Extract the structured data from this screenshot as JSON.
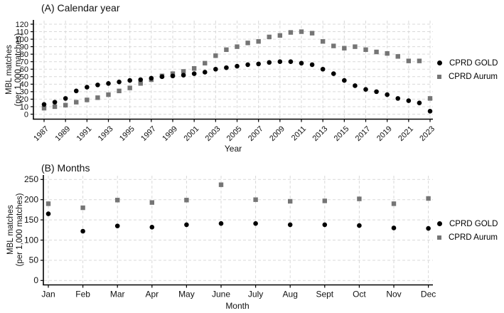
{
  "page": {
    "background": "#ffffff"
  },
  "legend": {
    "items": [
      {
        "label": "CPRD GOLD",
        "marker": "circle",
        "color": "#000000"
      },
      {
        "label": "CPRD Aurum",
        "marker": "square",
        "color": "#757575"
      }
    ]
  },
  "chart_data": [
    {
      "id": "A",
      "type": "scatter",
      "title": "(A) Calendar year",
      "xlabel": "Year",
      "ylabel": "MBL matches",
      "ylabel2": "(per 1,000 matches)",
      "ylim": [
        0,
        120
      ],
      "yticks": [
        0,
        10,
        20,
        30,
        40,
        50,
        60,
        70,
        80,
        90,
        100,
        110,
        120
      ],
      "grid": true,
      "legend_position": "right",
      "x": [
        1987,
        1988,
        1989,
        1990,
        1991,
        1992,
        1993,
        1994,
        1995,
        1996,
        1997,
        1998,
        1999,
        2000,
        2001,
        2002,
        2003,
        2004,
        2005,
        2006,
        2007,
        2008,
        2009,
        2010,
        2011,
        2012,
        2013,
        2014,
        2015,
        2016,
        2017,
        2018,
        2019,
        2020,
        2021,
        2022,
        2023
      ],
      "xticks": [
        1987,
        1989,
        1991,
        1993,
        1995,
        1997,
        1999,
        2001,
        2003,
        2005,
        2007,
        2009,
        2011,
        2013,
        2015,
        2017,
        2019,
        2021,
        2023
      ],
      "series": [
        {
          "name": "CPRD GOLD",
          "marker": "circle",
          "color": "#000000",
          "values": [
            13,
            16,
            21,
            31,
            36,
            39,
            41,
            43,
            45,
            46,
            48,
            50,
            51,
            52,
            54,
            56,
            60,
            62,
            64,
            66,
            67,
            69,
            70,
            70,
            68,
            66,
            60,
            54,
            45,
            38,
            33,
            30,
            26,
            21,
            18,
            15,
            4
          ]
        },
        {
          "name": "CPRD Aurum",
          "marker": "square",
          "color": "#757575",
          "values": [
            8,
            10,
            12,
            16,
            19,
            22,
            26,
            31,
            35,
            41,
            46,
            51,
            54,
            57,
            61,
            68,
            78,
            86,
            90,
            95,
            97,
            103,
            105,
            109,
            110,
            108,
            97,
            91,
            88,
            90,
            86,
            83,
            81,
            77,
            71,
            71,
            21
          ]
        }
      ]
    },
    {
      "id": "B",
      "type": "scatter",
      "title": "(B) Months",
      "xlabel": "Month",
      "ylabel": "MBL matches",
      "ylabel2": "(per 1,000 matches)",
      "ylim": [
        0,
        250
      ],
      "yticks": [
        0,
        50,
        100,
        150,
        200,
        250
      ],
      "grid": true,
      "legend_position": "right",
      "categories": [
        "Jan",
        "Feb",
        "Mar",
        "Apr",
        "May",
        "June",
        "July",
        "Aug",
        "Sept",
        "Oct",
        "Nov",
        "Dec"
      ],
      "series": [
        {
          "name": "CPRD GOLD",
          "marker": "circle",
          "color": "#000000",
          "values": [
            165,
            122,
            135,
            132,
            138,
            141,
            141,
            138,
            138,
            136,
            130,
            129
          ]
        },
        {
          "name": "CPRD Aurum",
          "marker": "square",
          "color": "#757575",
          "values": [
            190,
            180,
            199,
            193,
            199,
            237,
            200,
            196,
            197,
            202,
            190,
            203
          ]
        }
      ]
    }
  ]
}
